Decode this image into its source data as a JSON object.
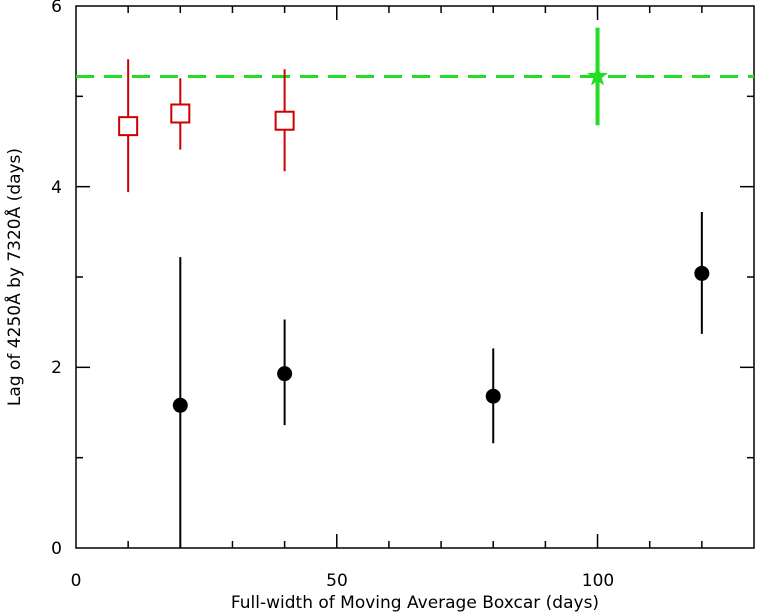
{
  "chart_data": {
    "type": "scatter",
    "xlabel": "Full-width of Moving Average Boxcar (days)",
    "ylabel": "Lag of 4250Å by 7320Å (days)",
    "xlim": [
      0,
      130
    ],
    "ylim": [
      0,
      6
    ],
    "x_ticks": [
      "0",
      "50",
      "100"
    ],
    "y_ticks": [
      "0",
      "2",
      "4",
      "6"
    ],
    "grid": false,
    "reference_line": {
      "y": 5.22,
      "color": "#22dd22",
      "style": "dashed"
    },
    "series": [
      {
        "marker": "filled-circle",
        "color": "#000000",
        "points": [
          {
            "x": 20,
            "y": 1.58,
            "err_lo": 1.58,
            "err_hi": 1.64
          },
          {
            "x": 40,
            "y": 1.93,
            "err_lo": 0.57,
            "err_hi": 0.6
          },
          {
            "x": 80,
            "y": 1.68,
            "err_lo": 0.52,
            "err_hi": 0.53
          },
          {
            "x": 120,
            "y": 3.04,
            "err_lo": 0.67,
            "err_hi": 0.68
          }
        ]
      },
      {
        "marker": "open-square",
        "color": "#cc0000",
        "points": [
          {
            "x": 10,
            "y": 4.67,
            "err_lo": 0.73,
            "err_hi": 0.74
          },
          {
            "x": 20,
            "y": 4.81,
            "err_lo": 0.4,
            "err_hi": 0.39
          },
          {
            "x": 40,
            "y": 4.73,
            "err_lo": 0.56,
            "err_hi": 0.57
          }
        ]
      },
      {
        "marker": "star",
        "color": "#22dd22",
        "points": [
          {
            "x": 100,
            "y": 5.22,
            "err_lo": 0.54,
            "err_hi": 0.54
          }
        ]
      }
    ]
  }
}
